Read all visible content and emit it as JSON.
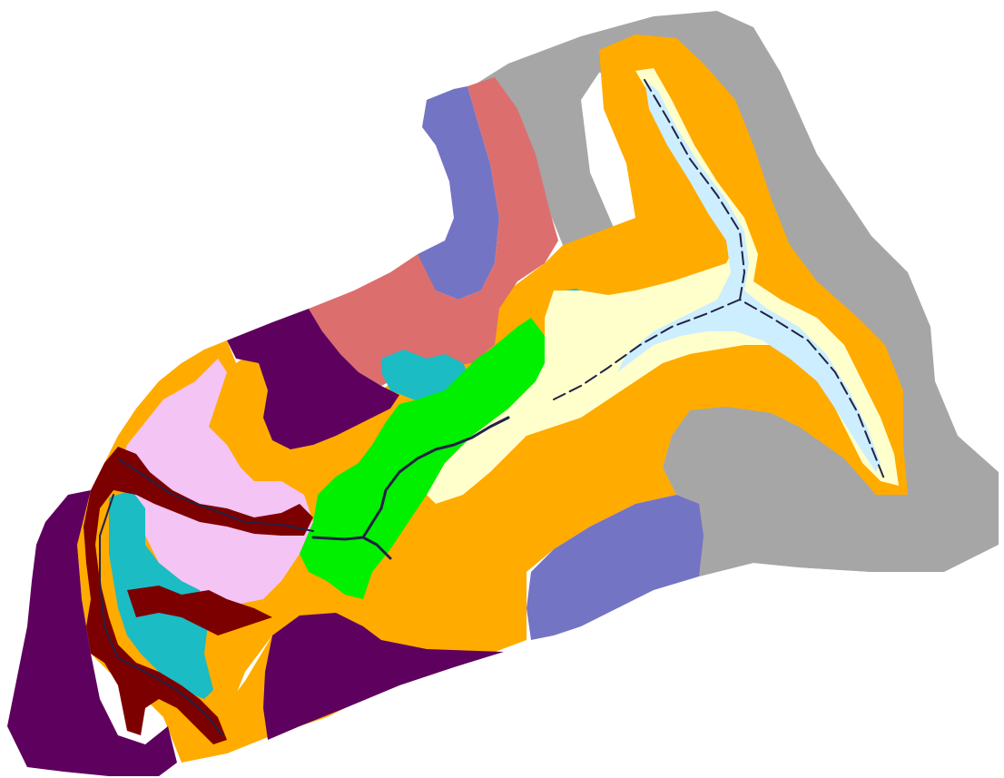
{
  "map": {
    "colors": {
      "gray": "#a6a6a6",
      "orange": "#ffab00",
      "light_yellow": "#ffffcc",
      "pale_cyan": "#cceeff",
      "blue_purple": "#7474c4",
      "salmon": "#dd6e6e",
      "dark_purple": "#5e005e",
      "maroon": "#7d0000",
      "pink": "#f4c4f4",
      "teal": "#1bbcc4",
      "green": "#00f000",
      "river": "#222244"
    }
  }
}
